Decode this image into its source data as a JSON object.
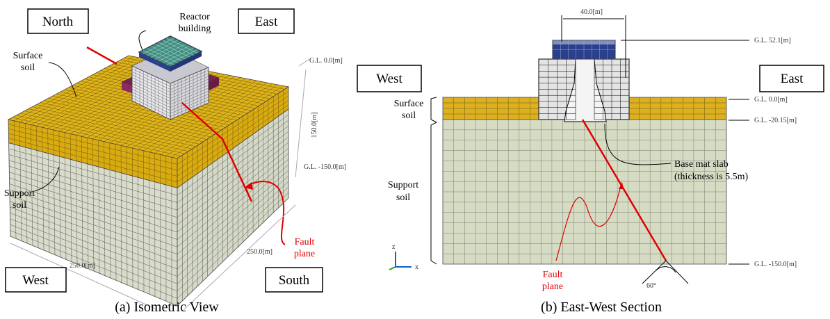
{
  "panels": [
    {
      "caption": "(a) Isometric View",
      "labels": {
        "north": "North",
        "east": "East",
        "west": "West",
        "south": "South",
        "reactor_building": [
          "Reactor",
          "building"
        ],
        "surface_soil": [
          "Surface",
          "soil"
        ],
        "support_soil": [
          "Support",
          "soil"
        ],
        "gl_top": "G.L. 0.0[m]",
        "depth": "150.0[m]",
        "gl_bottom": "G.L. -150.0[m]",
        "width_west": "250.0[m]",
        "width_south": "250.0[m]",
        "fault_plane": [
          "Fault",
          "plane"
        ]
      }
    },
    {
      "caption": "(b) East-West Section",
      "labels": {
        "width": "40.0[m]",
        "gl_roof": "G.L. 52.1[m]",
        "west": "West",
        "east": "East",
        "surface_soil": [
          "Surface",
          "soil"
        ],
        "gl_top": "G.L. 0.0[m]",
        "gl_surface_bottom": "G.L. -20.15[m]",
        "base_mat": [
          "Base mat slab",
          "(thickness is 5.5m)"
        ],
        "support_soil": [
          "Support",
          "soil"
        ],
        "fault_plane": [
          "Fault",
          "plane"
        ],
        "angle": "60°",
        "gl_bottom": "G.L. -150.0[m]",
        "axis_z": "z",
        "axis_x": "x"
      }
    }
  ]
}
